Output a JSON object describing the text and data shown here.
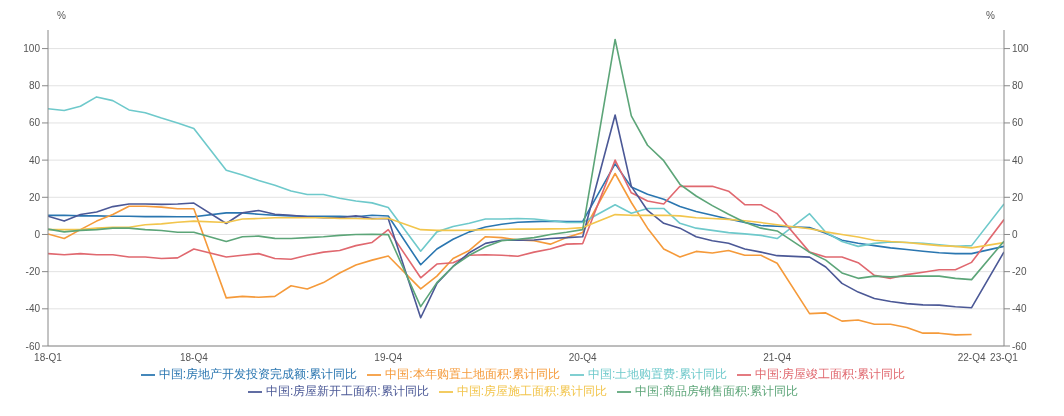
{
  "chart_data": {
    "type": "line",
    "ylabel": "%",
    "y2label": "%",
    "categories": [
      "18-Q1",
      null,
      null,
      null,
      null,
      null,
      null,
      null,
      null,
      "18-Q4",
      null,
      null,
      null,
      null,
      null,
      null,
      null,
      null,
      null,
      null,
      null,
      "19-Q4",
      null,
      null,
      null,
      null,
      null,
      null,
      null,
      null,
      null,
      null,
      null,
      "20-Q4",
      null,
      null,
      null,
      null,
      null,
      null,
      null,
      null,
      null,
      null,
      null,
      "21-Q4",
      null,
      null,
      null,
      null,
      null,
      null,
      null,
      null,
      null,
      null,
      null,
      "22-Q4",
      null,
      "23-Q1"
    ],
    "ylim": [
      -60,
      110
    ],
    "yticks": [
      -60,
      -40,
      -20,
      0,
      20,
      40,
      60,
      80,
      100
    ],
    "y2lim": [
      -60,
      110
    ],
    "y2ticks": [
      -60,
      -40,
      -20,
      0,
      20,
      40,
      60,
      80,
      100
    ],
    "grid": "y",
    "legend": "bottom",
    "marker": "none",
    "line_style": "solid",
    "series": [
      {
        "name": "中国:房地产开发投资完成额:累计同比",
        "color": "#2a76b0",
        "values": [
          10.3,
          10.3,
          10,
          10,
          9.8,
          9.8,
          9.6,
          9.6,
          9.5,
          9.5,
          null,
          11.6,
          11.6,
          10.9,
          10.3,
          10,
          9.8,
          9.8,
          9.8,
          9.5,
          10.3,
          9.9,
          null,
          -16.3,
          -7.8,
          -2.6,
          1.4,
          4,
          5.5,
          6.6,
          6.9,
          7.2,
          7,
          7,
          null,
          38,
          25.5,
          21.6,
          19,
          15,
          12.4,
          10.3,
          8.3,
          6.4,
          4.8,
          4.4,
          null,
          3.7,
          0.7,
          -3.1,
          -4.7,
          -6,
          -7.2,
          -8.1,
          -9,
          -9.8,
          -10.3,
          -10.3,
          null,
          -6.4
        ]
      },
      {
        "name": "中国:本年购置土地面积:累计同比",
        "color": "#f59a3a",
        "values": [
          0.3,
          -2.2,
          2.6,
          7.2,
          10.7,
          15.2,
          15.2,
          14.7,
          13.8,
          13.8,
          null,
          -34.1,
          -33.3,
          -33.8,
          -33.3,
          -27.6,
          -29.3,
          -25.9,
          -20.7,
          -16.4,
          -13.8,
          -11.6,
          null,
          -29.3,
          -22.4,
          -12.9,
          -8.6,
          -1.2,
          -1.7,
          -2.9,
          -3.4,
          -5.2,
          -1.7,
          1.1,
          null,
          32.8,
          17.2,
          3.4,
          -7.8,
          -12.1,
          -9.1,
          -10,
          -8.6,
          -11.2,
          -11.2,
          -15.5,
          null,
          -42.6,
          -42.2,
          -46.6,
          -46,
          -48.3,
          -48.3,
          -50,
          -53.1,
          -53.1,
          -54,
          -53.8,
          null,
          null
        ]
      },
      {
        "name": "中国:土地购置费:累计同比",
        "color": "#6ec9cb",
        "values": [
          67.6,
          66.7,
          69,
          74,
          72,
          67,
          65.5,
          62.6,
          60,
          57,
          null,
          34.5,
          32,
          29,
          26.5,
          23.4,
          21.5,
          21.5,
          19.5,
          18,
          17,
          14.5,
          null,
          -9,
          1.4,
          4.3,
          6,
          8.3,
          8.3,
          8.6,
          8.3,
          7.4,
          6.4,
          6.4,
          null,
          16,
          11.4,
          14,
          14,
          6,
          3.4,
          2.2,
          1,
          0.3,
          -0.5,
          -2.2,
          null,
          11.2,
          1.2,
          -3.8,
          -6.4,
          -4.8,
          -4,
          -4.3,
          -4.7,
          -5.5,
          -6.4,
          -6,
          null,
          16.4
        ]
      },
      {
        "name": "中国:房屋竣工面积:累计同比",
        "color": "#e0686f",
        "values": [
          -10.3,
          -10.9,
          -10.3,
          -10.9,
          -10.9,
          -12.1,
          -12.1,
          -12.9,
          -12.6,
          -7.8,
          null,
          -12.1,
          -11.2,
          -10.3,
          -12.9,
          -13.3,
          -11.2,
          -9.5,
          -8.6,
          -6,
          -4.3,
          2.6,
          null,
          -23.3,
          -15.9,
          -15.2,
          -11.2,
          -10.9,
          -11.2,
          -11.7,
          -9.5,
          -7.8,
          -5.2,
          -4.9,
          null,
          40,
          22.4,
          18,
          16.4,
          25.9,
          25.9,
          25.9,
          23.3,
          16,
          16,
          11.2,
          null,
          -9.5,
          -12.1,
          -12.1,
          -15.2,
          -22,
          -23.6,
          -21.6,
          -20.3,
          -19,
          -19,
          -15,
          null,
          8
        ]
      },
      {
        "name": "中国:房屋新开工面积:累计同比",
        "color": "#4b5896",
        "values": [
          9.8,
          7.2,
          10.7,
          12.1,
          15,
          16.4,
          16.4,
          16.2,
          16.4,
          16.9,
          null,
          5.9,
          11.7,
          12.9,
          10.9,
          10.3,
          9.5,
          9,
          9,
          10,
          8.6,
          8.5,
          null,
          -44.8,
          -26.4,
          -17.2,
          -9.8,
          -4.8,
          -3.1,
          -3.1,
          -3,
          -2.2,
          -1.7,
          -1.2,
          null,
          64.3,
          25.9,
          12.9,
          6,
          3.4,
          -1.2,
          -3.4,
          -4.7,
          -7.8,
          -9.5,
          -11.4,
          null,
          -12.2,
          -17.5,
          -26.3,
          -31,
          -34.4,
          -36.1,
          -37.2,
          -37.9,
          -38,
          -38.9,
          -39.4,
          null,
          -9.4
        ]
      },
      {
        "name": "中国:房屋施工面积:累计同比",
        "color": "#f2c54c",
        "values": [
          2.6,
          2.6,
          2.6,
          3.4,
          3.8,
          3.9,
          5.2,
          5.7,
          6.6,
          7.2,
          null,
          6.4,
          8.3,
          8.6,
          9,
          9,
          9,
          9,
          8.6,
          8.6,
          8.3,
          8.7,
          null,
          2.6,
          2.2,
          2.2,
          2.3,
          2.6,
          2.7,
          2.9,
          2.9,
          3,
          3.1,
          3.7,
          null,
          10.7,
          10.3,
          10.3,
          10.3,
          10,
          9,
          8.6,
          8.1,
          7.4,
          6.4,
          5.2,
          null,
          3.1,
          1.4,
          0,
          -1.4,
          -3.1,
          -3.8,
          -4.3,
          -5.2,
          -6,
          -6.4,
          -7.2,
          null,
          -4.4
        ]
      },
      {
        "name": "中国:商品房销售面积:累计同比",
        "color": "#5ca578",
        "values": [
          2.9,
          1.4,
          2.2,
          2.6,
          3.4,
          3.4,
          2.6,
          2.1,
          1.2,
          1.2,
          null,
          -3.8,
          -1.2,
          -0.9,
          -2.1,
          -2.2,
          -1.7,
          -1.2,
          -0.5,
          0,
          0.1,
          -0.1,
          null,
          -38.8,
          -25.9,
          -17.2,
          -11.2,
          -6.6,
          -3.4,
          -2.6,
          -1.7,
          0,
          1.2,
          2.6,
          null,
          104.9,
          63.8,
          48,
          39.7,
          27,
          20.7,
          15.5,
          10.9,
          6.6,
          3.4,
          1.9,
          null,
          -9.6,
          -13.8,
          -20.7,
          -23.6,
          -22.4,
          -22.8,
          -22.4,
          -22.4,
          -22.4,
          -23.6,
          -24.3,
          null,
          -3.6
        ]
      }
    ]
  }
}
